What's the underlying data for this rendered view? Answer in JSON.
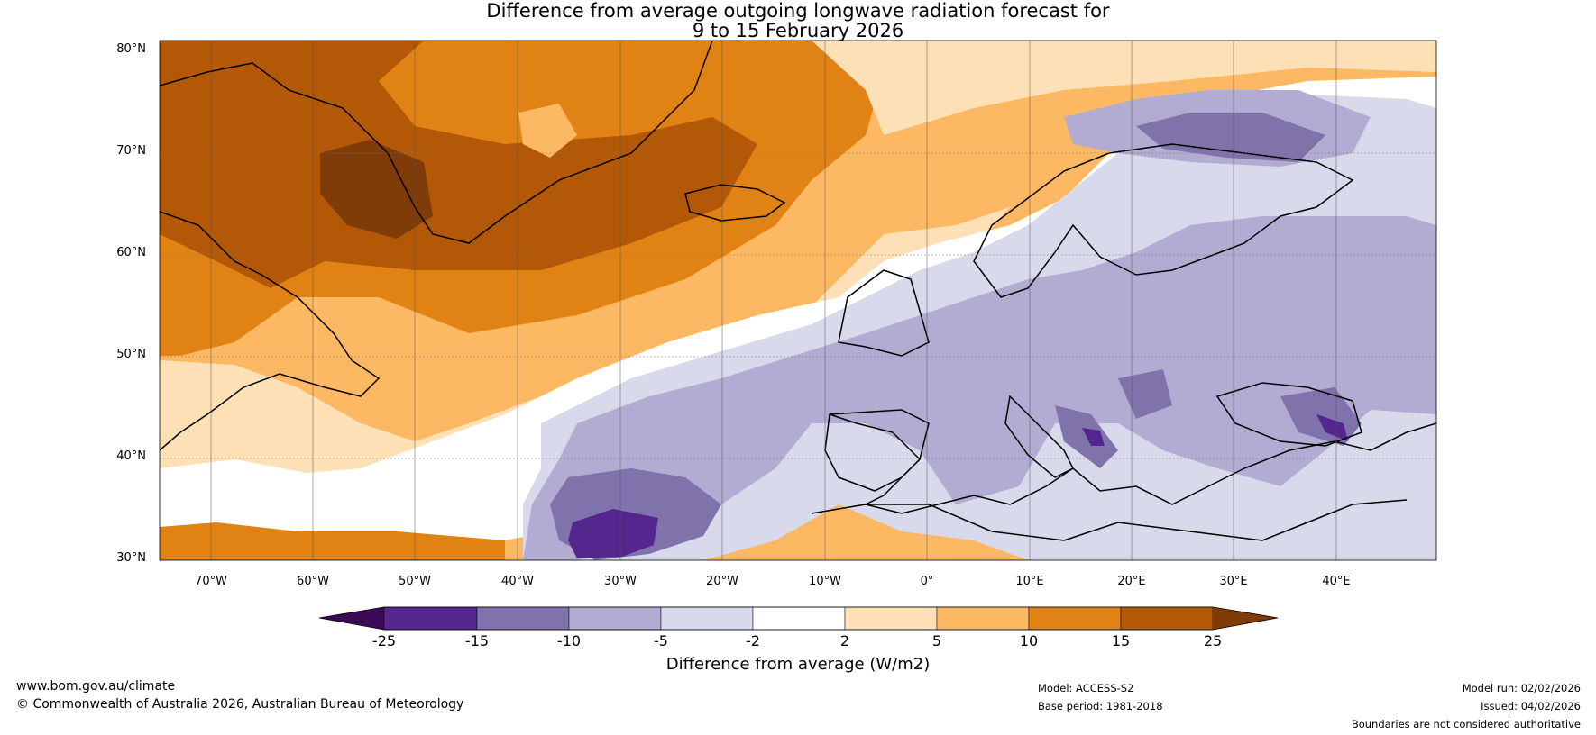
{
  "title": {
    "line1": "Difference from average outgoing longwave radiation forecast for",
    "line2": "9 to 15 February 2026"
  },
  "map": {
    "latitude_labels": [
      "80°N",
      "70°N",
      "60°N",
      "50°N",
      "40°N",
      "30°N"
    ],
    "longitude_labels": [
      "70°W",
      "60°W",
      "50°W",
      "40°W",
      "30°W",
      "20°W",
      "10°W",
      "0°",
      "10°E",
      "20°E",
      "30°E",
      "40°E"
    ],
    "colors": {
      "lt_neg25": "#3d0a56",
      "neg25_neg15": "#54278f",
      "neg15_neg10": "#8073ac",
      "neg10_neg5": "#b2abd2",
      "neg5_neg2": "#d8daeb",
      "neg2_2": "#ffffff",
      "pos2_5": "#fee0b6",
      "pos5_10": "#fdb863",
      "pos10_15": "#e08214",
      "pos15_25": "#b35806",
      "gt_25": "#7f3b08"
    }
  },
  "colorbar": {
    "ticks": [
      "-25",
      "-15",
      "-10",
      "-5",
      "-2",
      "2",
      "5",
      "10",
      "15",
      "25"
    ],
    "label": "Difference from average (W/m2)"
  },
  "footer": {
    "website": "www.bom.gov.au/climate",
    "copyright": "© Commonwealth of Australia 2026, Australian Bureau of Meteorology",
    "model": "Model: ACCESS-S2",
    "base_period": "Base period: 1981-2018",
    "model_run": "Model run: 02/02/2026",
    "issued": "Issued: 04/02/2026",
    "disclaimer": "Boundaries are not considered authoritative"
  }
}
